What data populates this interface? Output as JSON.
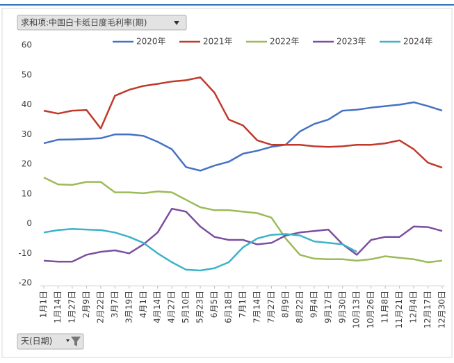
{
  "chart_data": {
    "type": "line",
    "value_field_button": "求和项:中国白卡纸日度毛利率(期)",
    "axis_field_button": "天(日期)",
    "categories": [
      "1月1日",
      "1月14日",
      "1月27日",
      "2月9日",
      "2月22日",
      "3月7日",
      "3月19日",
      "4月1日",
      "4月14日",
      "4月27日",
      "5月10日",
      "5月23日",
      "6月5日",
      "6月18日",
      "7月1日",
      "7月14日",
      "7月27日",
      "8月9日",
      "8月22日",
      "9月4日",
      "9月17日",
      "9月30日",
      "10月13日",
      "10月26日",
      "11月8日",
      "11月21日",
      "12月4日",
      "12月17日",
      "12月30日"
    ],
    "ylim": [
      -20,
      60
    ],
    "yticks": [
      -20,
      -10,
      0,
      10,
      20,
      30,
      40,
      50,
      60
    ],
    "grid": false,
    "legend": "top-right",
    "series": [
      {
        "name": "2020年",
        "color": "#4472c4",
        "values": [
          27,
          28.2,
          28.3,
          28.5,
          28.7,
          30,
          30,
          29.5,
          27.5,
          25,
          19,
          17.8,
          19.5,
          20.8,
          23.5,
          24.5,
          25.8,
          26.5,
          31,
          33.5,
          35,
          38,
          38.3,
          39,
          39.5,
          40,
          40.8,
          39.5,
          38
        ]
      },
      {
        "name": "2021年",
        "color": "#c0392b",
        "values": [
          38,
          37,
          38,
          38.2,
          32,
          43,
          45,
          46.3,
          47,
          47.8,
          48.2,
          49.2,
          44,
          35,
          33,
          28,
          26.5,
          26.5,
          26.5,
          26,
          25.8,
          26,
          26.5,
          26.5,
          27,
          28,
          25,
          20.5,
          18.8
        ]
      },
      {
        "name": "2022年",
        "color": "#9bbb59",
        "values": [
          15.5,
          13.2,
          13,
          14,
          14,
          10.5,
          10.5,
          10.2,
          10.8,
          10.5,
          8,
          5.5,
          4.5,
          4.5,
          4,
          3.5,
          2,
          -5,
          -10.5,
          -11.8,
          -12,
          -12,
          -12.5,
          -12,
          -11,
          -11.5,
          -12,
          -13,
          -12.5
        ]
      },
      {
        "name": "2023年",
        "color": "#7b4fa0",
        "values": [
          -12.5,
          -12.8,
          -12.8,
          -10.5,
          -9.5,
          -9,
          -10,
          -7,
          -3,
          5,
          4,
          -1,
          -4.5,
          -5.5,
          -5.5,
          -7,
          -6.5,
          -4,
          -3,
          -2.5,
          -2,
          -7,
          -10.5,
          -5.5,
          -4.5,
          -4.5,
          -1,
          -1.2,
          -2.5
        ]
      },
      {
        "name": "2024年",
        "color": "#3bb3c8",
        "values": [
          -3,
          -2.2,
          -1.8,
          -2,
          -2.2,
          -3,
          -4.5,
          -6.5,
          -10,
          -13,
          -15.5,
          -15.8,
          -15,
          -13,
          -8,
          -5,
          -3.8,
          -3.5,
          -4,
          -6,
          -6.5,
          -7,
          -9.5,
          null,
          null,
          null,
          null,
          null,
          null
        ]
      }
    ]
  }
}
